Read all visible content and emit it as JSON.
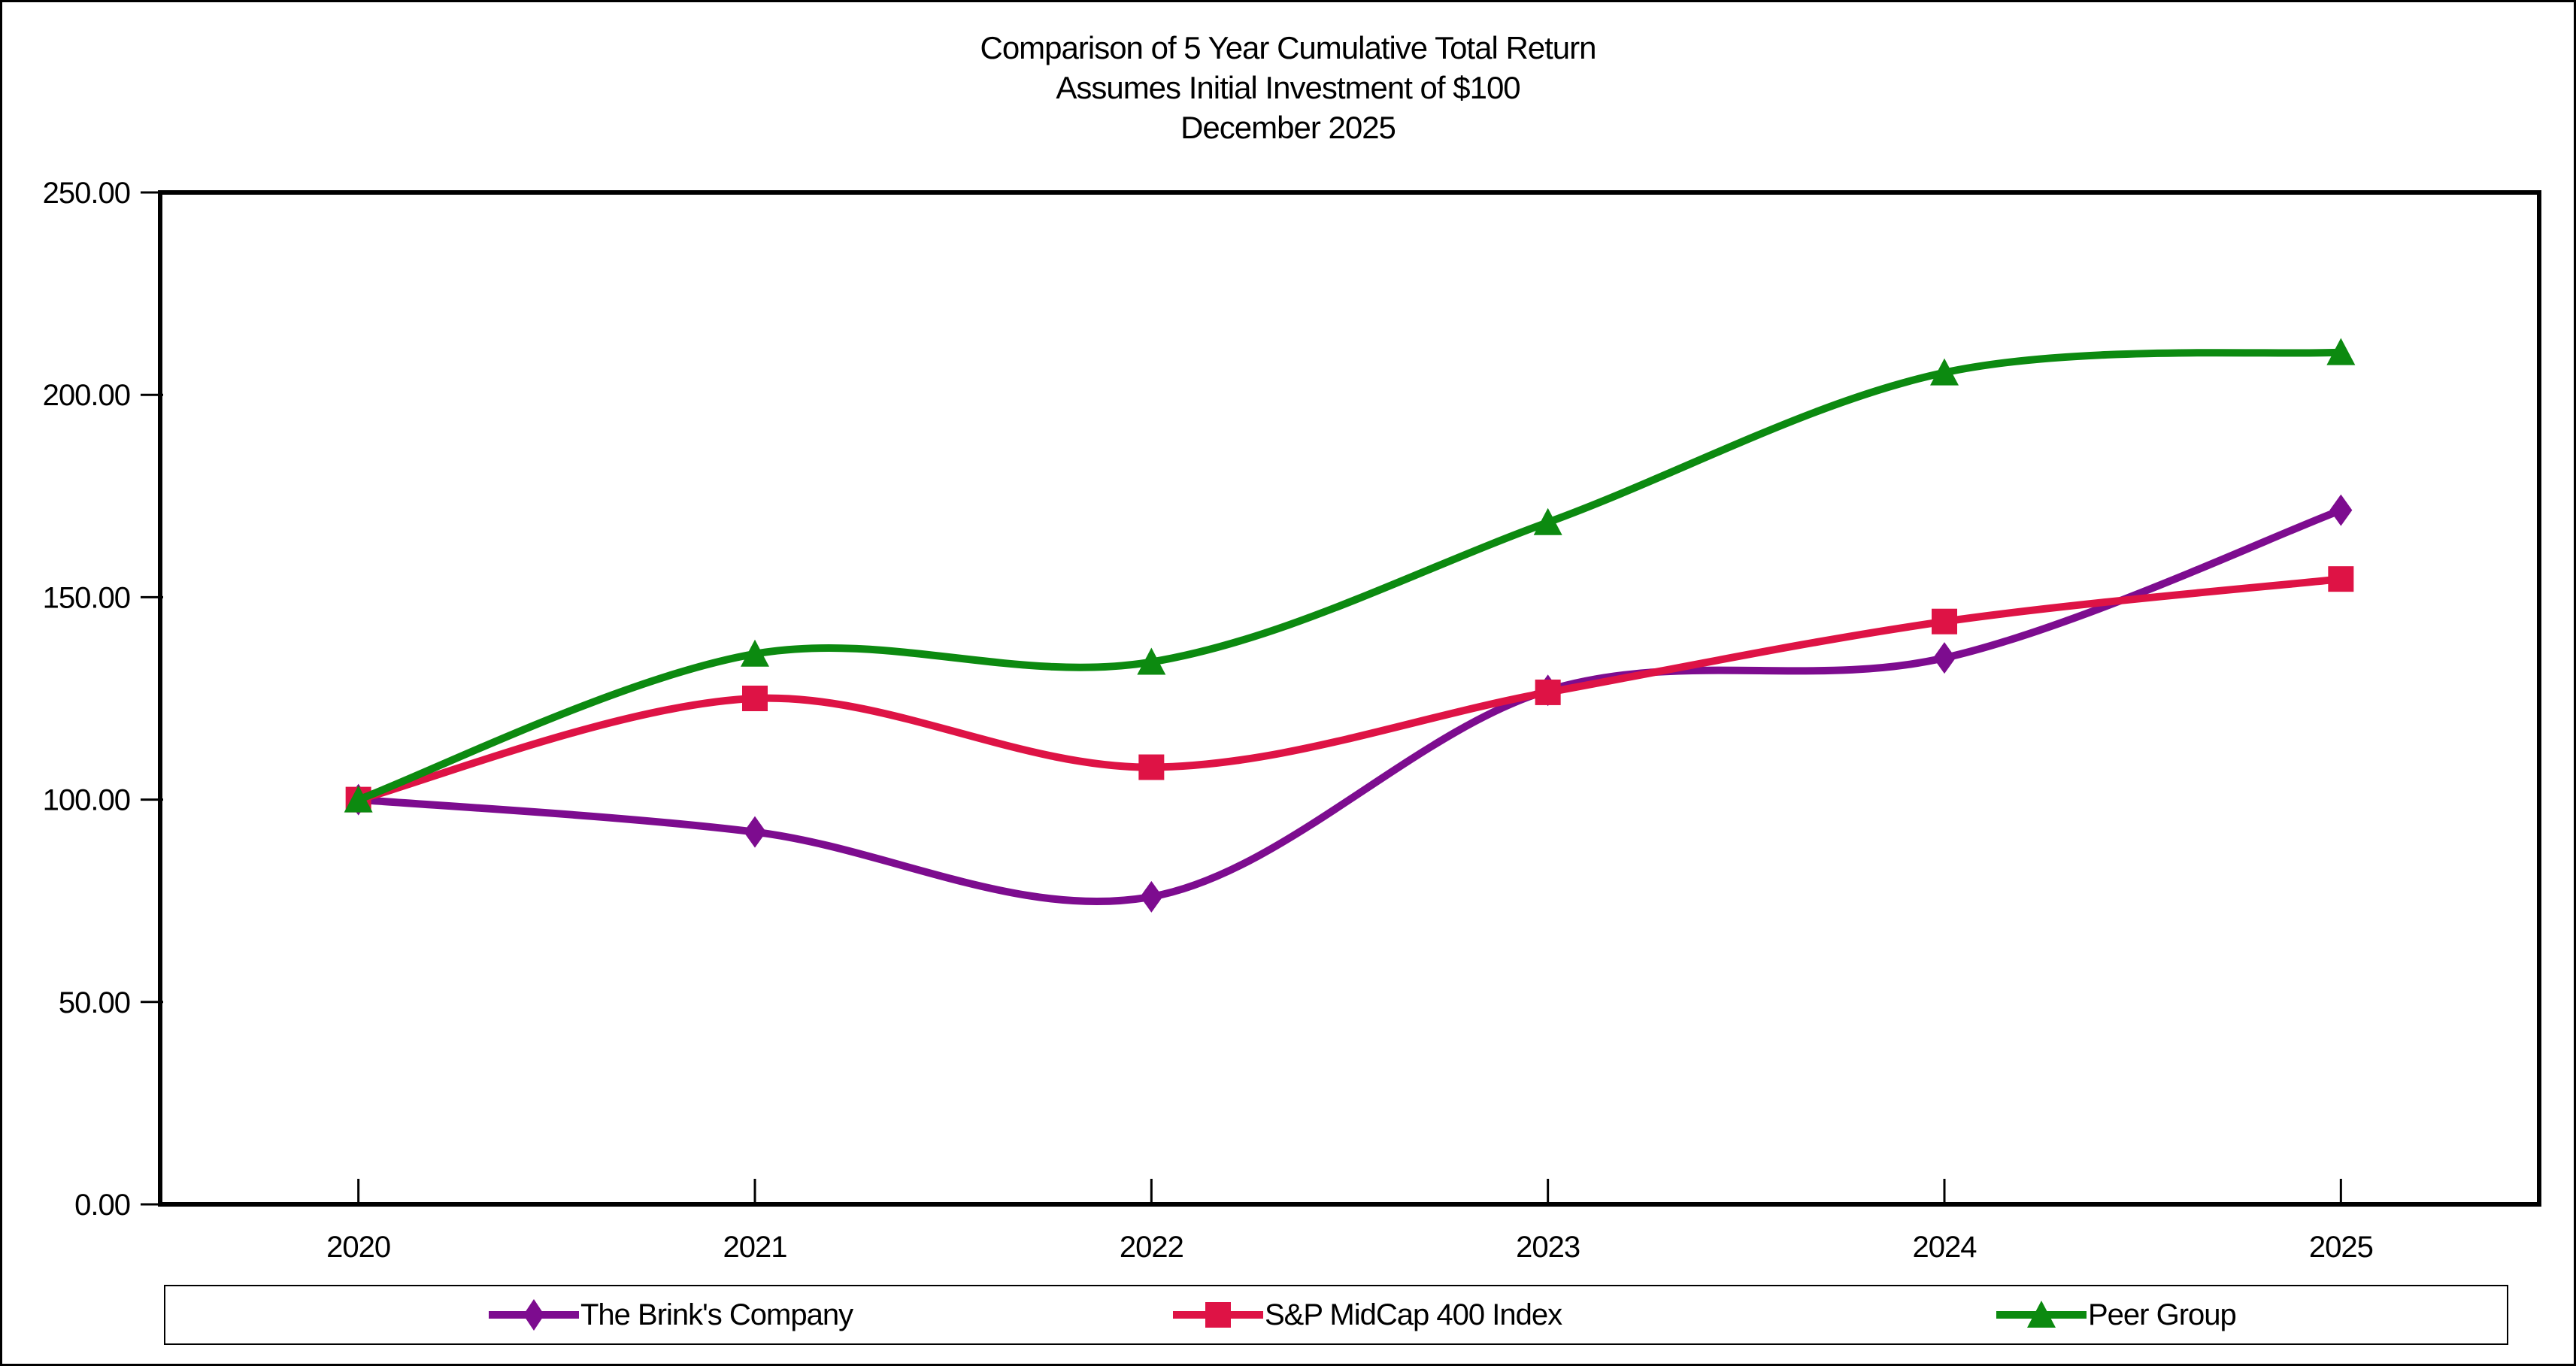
{
  "figure": {
    "title_lines": [
      "Comparison of 5 Year Cumulative Total Return",
      "Assumes Initial Investment of $100",
      "December 2025"
    ]
  },
  "chart_data": {
    "type": "line",
    "title": "Comparison of 5 Year Cumulative Total Return",
    "subtitle": "Assumes Initial Investment of $100",
    "date_label": "December 2025",
    "categories": [
      "2020",
      "2021",
      "2022",
      "2023",
      "2024",
      "2025"
    ],
    "series": [
      {
        "name": "The Brink's Company",
        "marker": "diamond",
        "color": "#7D0C8F",
        "values": [
          100,
          92,
          76,
          127,
          135,
          171.5
        ]
      },
      {
        "name": "S&P MidCap 400 Index",
        "marker": "square",
        "color": "#DE1345",
        "values": [
          100,
          125,
          108,
          126.5,
          144,
          154.5
        ]
      },
      {
        "name": "Peer Group",
        "marker": "triangle",
        "color": "#0C8A10",
        "values": [
          100,
          136,
          134,
          168.5,
          205.5,
          210.5
        ]
      }
    ],
    "ylim": [
      0,
      250
    ],
    "ytick_step": 50,
    "yticks": [
      "0.00",
      "50.00",
      "100.00",
      "150.00",
      "200.00",
      "250.00"
    ],
    "xlabel": "",
    "ylabel": "",
    "grid": "off",
    "line_style": "smooth",
    "legend_position": "bottom",
    "axis_color": "#000000",
    "background_color": "#ffffff"
  }
}
